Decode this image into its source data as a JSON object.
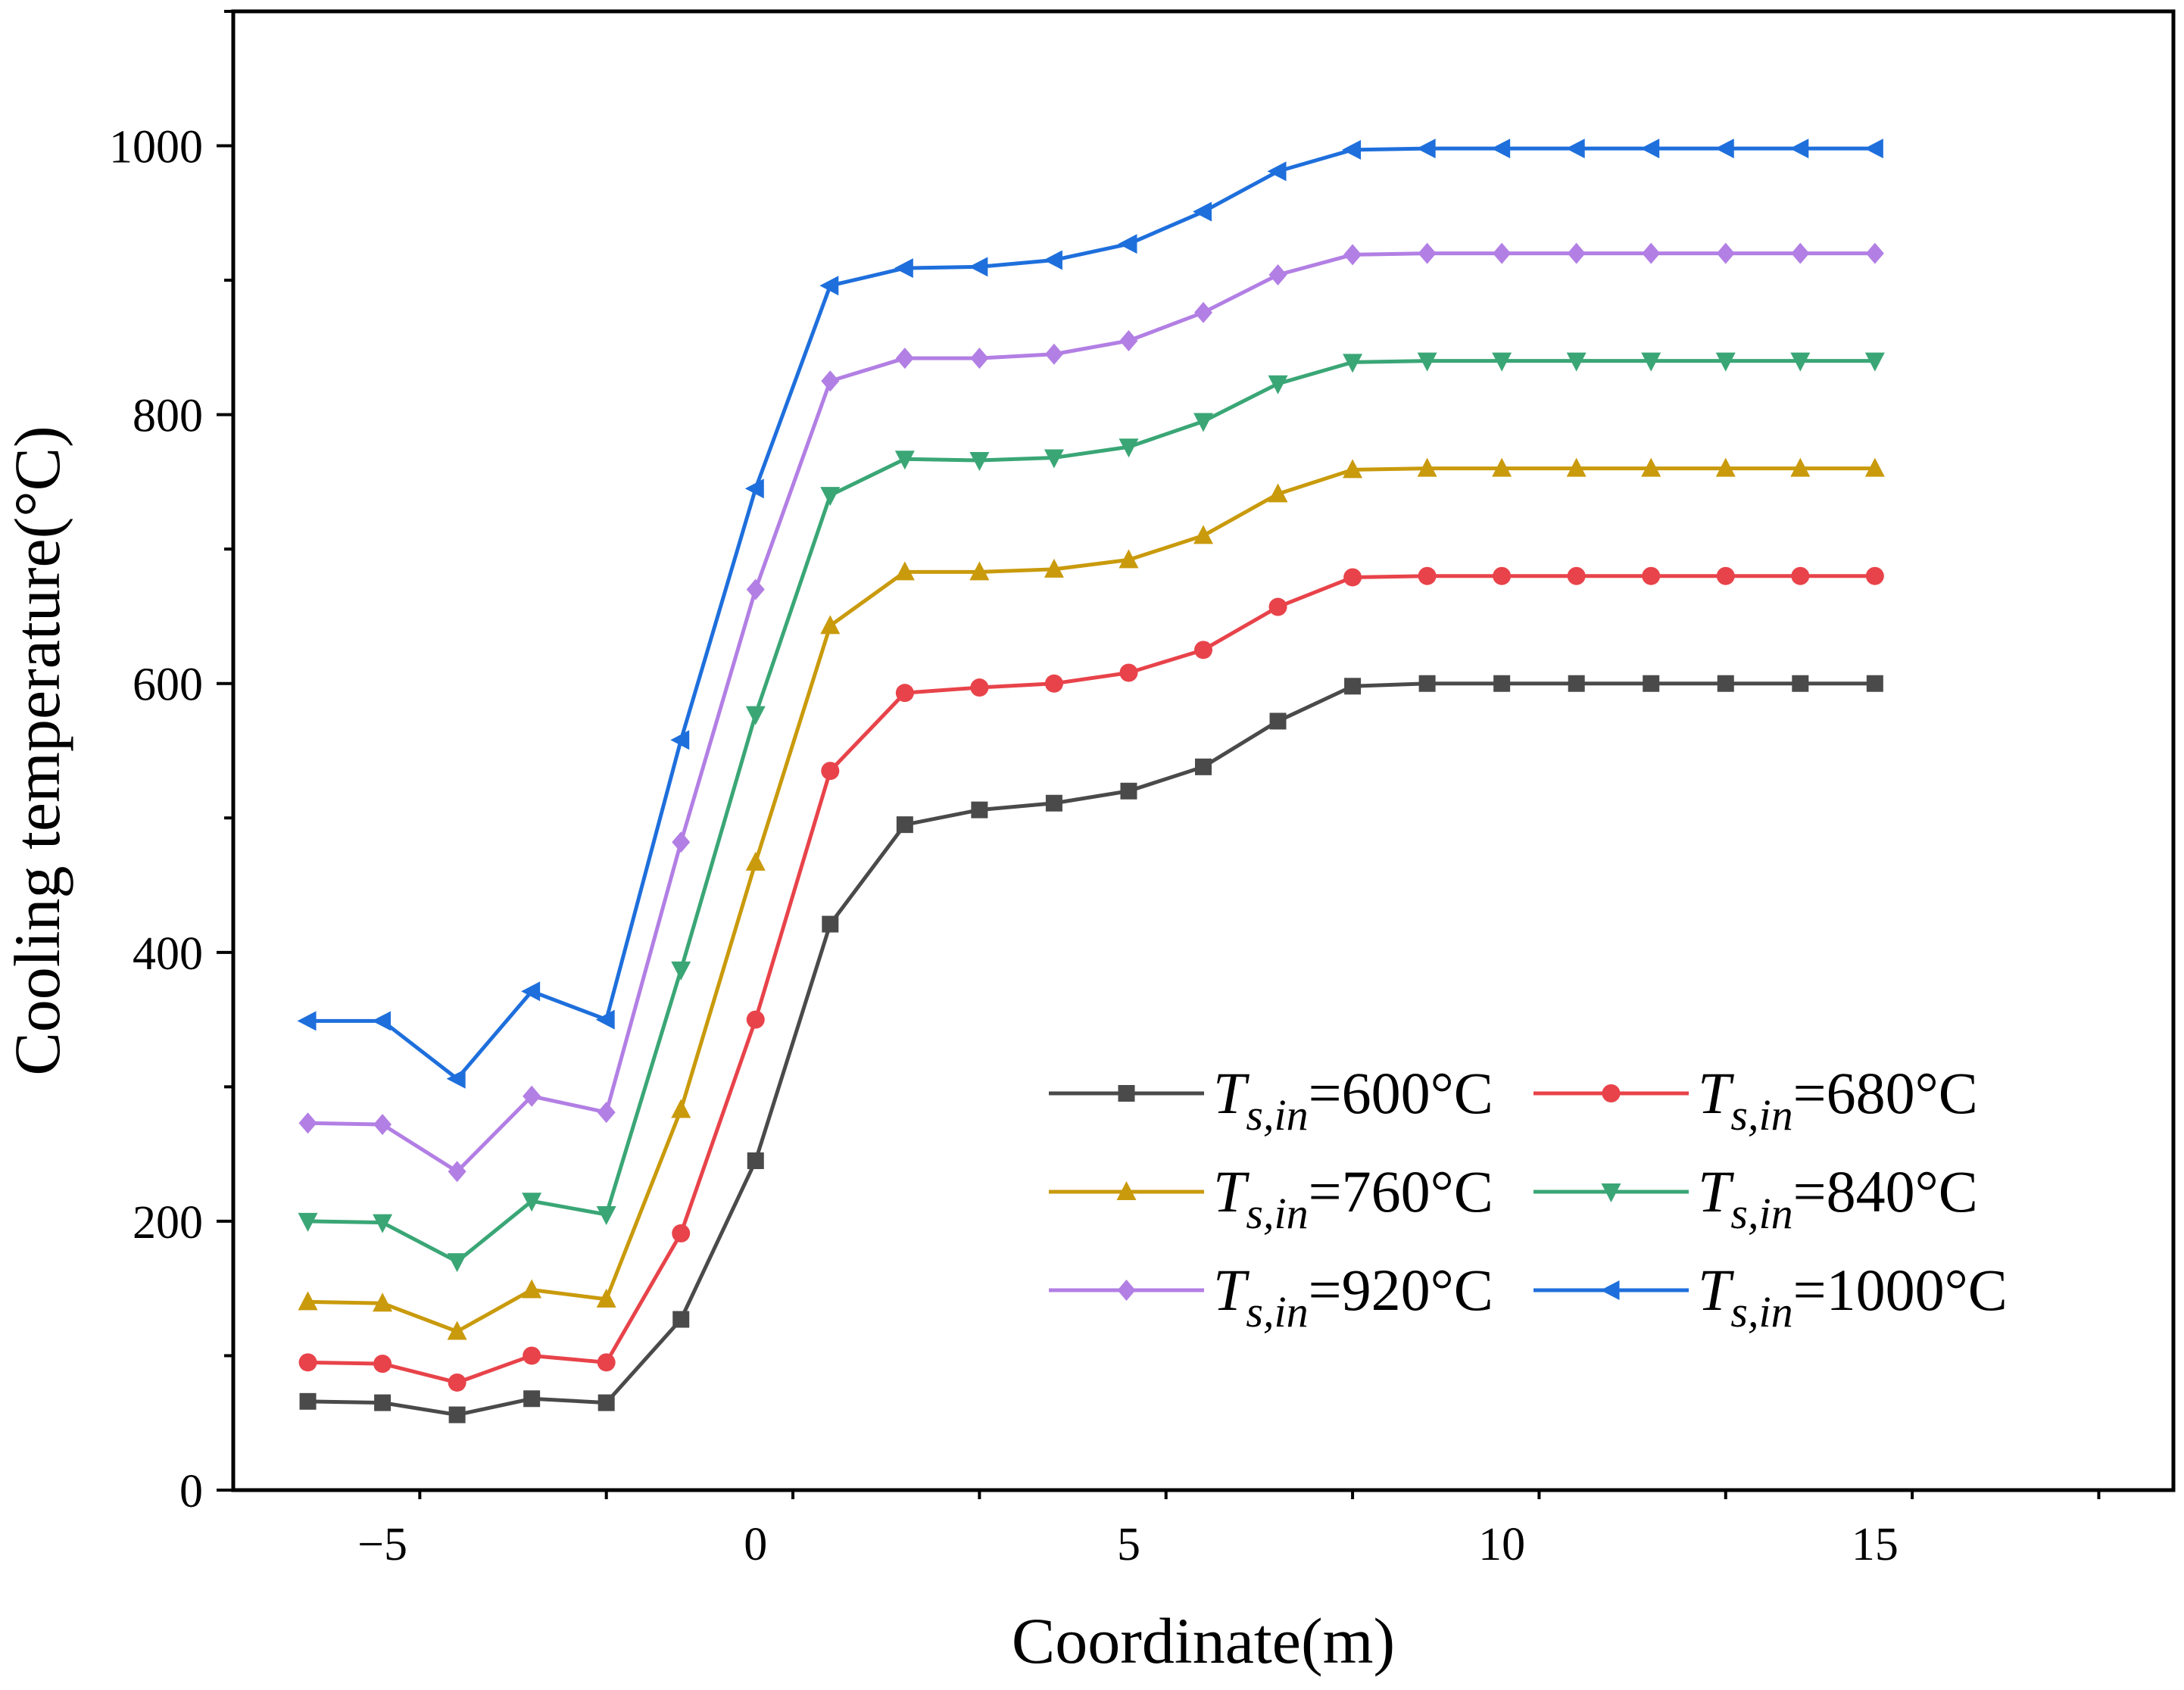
{
  "chart_data": {
    "type": "line",
    "title": "",
    "xlabel": "Coordinate(m)",
    "ylabel": "Cooling temperature(°C)",
    "xlim": [
      -7,
      19
    ],
    "ylim": [
      0,
      1100
    ],
    "xticks": [
      -5,
      0,
      5,
      10,
      15
    ],
    "xtick_labels": [
      "−5",
      "0",
      "5",
      "10",
      "15"
    ],
    "yticks": [
      0,
      200,
      400,
      600,
      800,
      1000
    ],
    "ytick_labels": [
      "0",
      "200",
      "400",
      "600",
      "800",
      "1000"
    ],
    "grid": false,
    "legend_position": "bottom-right",
    "legend_columns": 2,
    "x": [
      -6,
      -5,
      -4,
      -3,
      -2,
      -1,
      0,
      1,
      2,
      3,
      4,
      5,
      6,
      7,
      8,
      9,
      10,
      11,
      12,
      13,
      14,
      15
    ],
    "series": [
      {
        "name": "Ts,in=600°C",
        "label_main": "T",
        "label_sub": "s,in",
        "label_rest": "=600°C",
        "color": "#4a4a4a",
        "marker": "square",
        "values": [
          66,
          65,
          56,
          68,
          65,
          127,
          245,
          421,
          495,
          506,
          511,
          520,
          538,
          572,
          598,
          600,
          600,
          600,
          600,
          600,
          600,
          600
        ]
      },
      {
        "name": "Ts,in=680°C",
        "label_main": "T",
        "label_sub": "s,in",
        "label_rest": "=680°C",
        "color": "#e8434a",
        "marker": "circle",
        "values": [
          95,
          94,
          80,
          100,
          95,
          191,
          350,
          535,
          593,
          597,
          600,
          608,
          625,
          657,
          679,
          680,
          680,
          680,
          680,
          680,
          680,
          680
        ]
      },
      {
        "name": "Ts,in=760°C",
        "label_main": "T",
        "label_sub": "s,in",
        "label_rest": "=760°C",
        "color": "#c99a0c",
        "marker": "triangle-up",
        "values": [
          140,
          139,
          118,
          149,
          142,
          283,
          467,
          643,
          683,
          683,
          685,
          692,
          710,
          741,
          759,
          760,
          760,
          760,
          760,
          760,
          760,
          760
        ]
      },
      {
        "name": "Ts,in=840°C",
        "label_main": "T",
        "label_sub": "s,in",
        "label_rest": "=840°C",
        "color": "#3aa676",
        "marker": "triangle-down",
        "values": [
          200,
          199,
          170,
          215,
          205,
          387,
          577,
          740,
          767,
          766,
          768,
          776,
          795,
          823,
          839,
          840,
          840,
          840,
          840,
          840,
          840,
          840
        ]
      },
      {
        "name": "Ts,in=920°C",
        "label_main": "T",
        "label_sub": "s,in",
        "label_rest": "=920°C",
        "color": "#b27fe4",
        "marker": "diamond",
        "values": [
          273,
          272,
          237,
          293,
          281,
          482,
          670,
          825,
          842,
          842,
          845,
          855,
          876,
          904,
          919,
          920,
          920,
          920,
          920,
          920,
          920,
          920
        ]
      },
      {
        "name": "Ts,in=1000°C",
        "label_main": "T",
        "label_sub": "s,in",
        "label_rest": "=1000°C",
        "color": "#1e6fdc",
        "marker": "triangle-left",
        "values": [
          349,
          349,
          306,
          371,
          350,
          558,
          745,
          896,
          909,
          910,
          915,
          927,
          951,
          981,
          997,
          998,
          998,
          998,
          998,
          998,
          998,
          998
        ]
      }
    ]
  }
}
